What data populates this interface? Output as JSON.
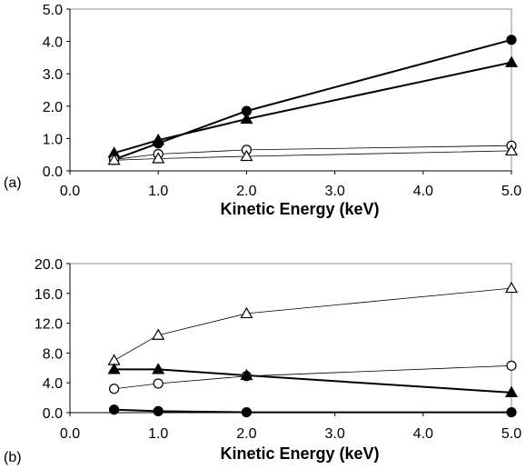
{
  "chart_data": [
    {
      "type": "line",
      "panel_label": "(a)",
      "xlabel": "Kinetic Energy (keV)",
      "ylabel": "",
      "xlim": [
        0,
        5
      ],
      "ylim": [
        0,
        5
      ],
      "xticks": [
        "0.0",
        "1.0",
        "2.0",
        "3.0",
        "4.0",
        "5.0"
      ],
      "yticks": [
        "0.0",
        "1.0",
        "2.0",
        "3.0",
        "4.0",
        "5.0"
      ],
      "x": [
        0.5,
        1.0,
        2.0,
        5.0
      ],
      "grid": false,
      "legend": "none",
      "series": [
        {
          "marker": "filled-circle",
          "line": "thick",
          "values": [
            0.35,
            0.85,
            1.85,
            4.05
          ]
        },
        {
          "marker": "filled-triangle",
          "line": "thick",
          "values": [
            0.55,
            0.95,
            1.6,
            3.35
          ]
        },
        {
          "marker": "open-circle",
          "line": "thin",
          "values": [
            0.35,
            0.52,
            0.65,
            0.78
          ]
        },
        {
          "marker": "open-triangle",
          "line": "thin",
          "values": [
            0.33,
            0.38,
            0.45,
            0.62
          ]
        }
      ]
    },
    {
      "type": "line",
      "panel_label": "(b)",
      "xlabel": "Kinetic Energy (keV)",
      "ylabel": "",
      "xlim": [
        0,
        5
      ],
      "ylim": [
        0,
        20
      ],
      "xticks": [
        "0.0",
        "1.0",
        "2.0",
        "3.0",
        "4.0",
        "5.0"
      ],
      "yticks": [
        "0.0",
        "4.0",
        "8.0",
        "12.0",
        "16.0",
        "20.0"
      ],
      "x": [
        0.5,
        1.0,
        2.0,
        5.0
      ],
      "grid": false,
      "legend": "none",
      "series": [
        {
          "marker": "open-triangle",
          "line": "thin",
          "values": [
            7.0,
            10.4,
            13.3,
            16.7
          ]
        },
        {
          "marker": "open-circle",
          "line": "thin",
          "values": [
            3.2,
            3.9,
            4.9,
            6.3
          ]
        },
        {
          "marker": "filled-triangle",
          "line": "thick",
          "values": [
            5.8,
            5.8,
            5.0,
            2.7
          ]
        },
        {
          "marker": "filled-circle",
          "line": "thick",
          "values": [
            0.4,
            0.2,
            0.05,
            0.05
          ]
        }
      ]
    }
  ]
}
